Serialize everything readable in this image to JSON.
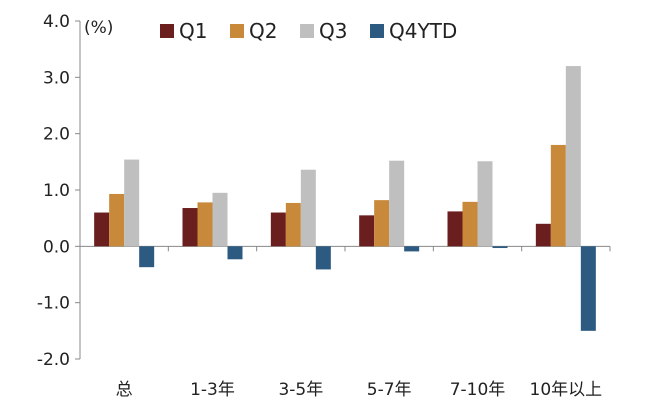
{
  "chart_data": {
    "type": "bar",
    "unit": "(%)",
    "categories": [
      "总",
      "1-3年",
      "3-5年",
      "5-7年",
      "7-10年",
      "10年以上"
    ],
    "series": [
      {
        "name": "Q1",
        "color": "#6B1E1E",
        "values": [
          0.6,
          0.68,
          0.6,
          0.55,
          0.62,
          0.4
        ]
      },
      {
        "name": "Q2",
        "color": "#C8893A",
        "values": [
          0.93,
          0.78,
          0.77,
          0.82,
          0.79,
          1.8
        ]
      },
      {
        "name": "Q3",
        "color": "#BFBFBF",
        "values": [
          1.54,
          0.95,
          1.36,
          1.52,
          1.51,
          3.2
        ]
      },
      {
        "name": "Q4YTD",
        "color": "#2C5A80",
        "values": [
          -0.37,
          -0.23,
          -0.41,
          -0.09,
          -0.03,
          -1.5
        ]
      }
    ],
    "ylim": [
      -2.0,
      4.0
    ],
    "yticks": [
      "4.0",
      "3.0",
      "2.0",
      "1.0",
      "0.0",
      "-1.0",
      "-2.0"
    ],
    "ytick_values": [
      4,
      3,
      2,
      1,
      0,
      -1,
      -2
    ],
    "legend_position": "top"
  }
}
